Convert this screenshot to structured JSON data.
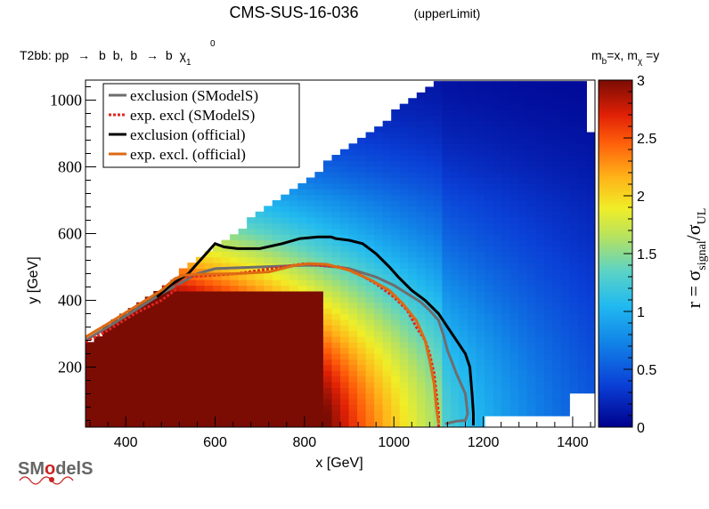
{
  "chart_data": {
    "type": "heatmap",
    "title": "CMS-SUS-16-036",
    "title_suffix": "(upperLimit)",
    "process": {
      "prefix": "T2bb: pp",
      "arrow": "→",
      "b": "b",
      "sep": ",",
      "chi": "χ",
      "zero": "0",
      "one": "1"
    },
    "mass_note": {
      "m": "m",
      "b_sub": "b",
      "eq_x": "=x, ",
      "chi_sub": "χ",
      "eq_y": "=y"
    },
    "xlabel": "x [GeV]",
    "ylabel": "y [GeV]",
    "zlabel": {
      "main": "r = σ",
      "sub1": "signal",
      "slash": "/σ",
      "sub2": "UL"
    },
    "xlim": [
      310,
      1450
    ],
    "ylim": [
      20,
      1060
    ],
    "zlim": [
      0,
      3
    ],
    "x_ticks": [
      "400",
      "600",
      "800",
      "1000",
      "1200",
      "1400"
    ],
    "x_tick_values": [
      400,
      600,
      800,
      1000,
      1200,
      1400
    ],
    "y_ticks": [
      "200",
      "400",
      "600",
      "800",
      "1000"
    ],
    "y_tick_values": [
      200,
      400,
      600,
      800,
      1000
    ],
    "z_ticks": [
      "0",
      "0.5",
      "1",
      "1.5",
      "2",
      "2.5",
      "3"
    ],
    "z_tick_values": [
      0,
      0.5,
      1,
      1.5,
      2,
      2.5,
      3
    ],
    "legend": [
      {
        "label": "exclusion (SModelS)",
        "color": "#6e6e6e",
        "style": "solid"
      },
      {
        "label": "exp. excl (SModelS)",
        "color": "#e3261e",
        "style": "dotted"
      },
      {
        "label": "exclusion (official)",
        "color": "#000000",
        "style": "solid"
      },
      {
        "label": "exp. excl. (official)",
        "color": "#dd6a12",
        "style": "solid"
      }
    ],
    "series": [
      {
        "name": "exclusion (SModelS)",
        "color": "#6e6e6e",
        "dash": "",
        "points": [
          [
            310,
            280
          ],
          [
            360,
            320
          ],
          [
            420,
            370
          ],
          [
            480,
            420
          ],
          [
            520,
            450
          ],
          [
            560,
            480
          ],
          [
            600,
            495
          ],
          [
            700,
            500
          ],
          [
            800,
            505
          ],
          [
            830,
            505
          ],
          [
            870,
            500
          ],
          [
            900,
            495
          ],
          [
            960,
            470
          ],
          [
            1000,
            445
          ],
          [
            1030,
            420
          ],
          [
            1060,
            395
          ],
          [
            1080,
            370
          ],
          [
            1100,
            340
          ],
          [
            1110,
            300
          ],
          [
            1120,
            250
          ],
          [
            1140,
            180
          ],
          [
            1160,
            120
          ],
          [
            1165,
            60
          ],
          [
            1160,
            40
          ],
          [
            1140,
            38
          ],
          [
            1115,
            30
          ]
        ]
      },
      {
        "name": "exp. excl (SModelS)",
        "color": "#e3261e",
        "dash": "3,2",
        "points": [
          [
            310,
            275
          ],
          [
            360,
            310
          ],
          [
            420,
            360
          ],
          [
            480,
            400
          ],
          [
            510,
            430
          ],
          [
            520,
            470
          ],
          [
            560,
            472
          ],
          [
            650,
            480
          ],
          [
            750,
            500
          ],
          [
            800,
            510
          ],
          [
            830,
            505
          ],
          [
            880,
            500
          ],
          [
            920,
            480
          ],
          [
            960,
            450
          ],
          [
            1000,
            410
          ],
          [
            1030,
            370
          ],
          [
            1050,
            320
          ],
          [
            1070,
            280
          ],
          [
            1080,
            240
          ],
          [
            1090,
            180
          ],
          [
            1095,
            120
          ],
          [
            1100,
            60
          ],
          [
            1100,
            20
          ]
        ]
      },
      {
        "name": "exclusion (official)",
        "color": "#000000",
        "dash": "",
        "points": [
          [
            470,
            410
          ],
          [
            500,
            445
          ],
          [
            540,
            480
          ],
          [
            580,
            540
          ],
          [
            600,
            570
          ],
          [
            620,
            560
          ],
          [
            650,
            555
          ],
          [
            700,
            555
          ],
          [
            750,
            570
          ],
          [
            790,
            585
          ],
          [
            830,
            590
          ],
          [
            860,
            590
          ],
          [
            870,
            585
          ],
          [
            900,
            580
          ],
          [
            930,
            570
          ],
          [
            960,
            540
          ],
          [
            990,
            500
          ],
          [
            1010,
            470
          ],
          [
            1040,
            430
          ],
          [
            1070,
            400
          ],
          [
            1100,
            360
          ],
          [
            1120,
            320
          ],
          [
            1140,
            280
          ],
          [
            1160,
            240
          ],
          [
            1170,
            200
          ],
          [
            1175,
            120
          ],
          [
            1178,
            60
          ],
          [
            1178,
            25
          ]
        ]
      },
      {
        "name": "exp. excl. (official)",
        "color": "#dd6a12",
        "dash": "",
        "points": [
          [
            310,
            290
          ],
          [
            360,
            330
          ],
          [
            420,
            380
          ],
          [
            480,
            430
          ],
          [
            510,
            465
          ],
          [
            530,
            475
          ],
          [
            560,
            478
          ],
          [
            650,
            480
          ],
          [
            720,
            485
          ],
          [
            780,
            505
          ],
          [
            810,
            510
          ],
          [
            850,
            508
          ],
          [
            900,
            490
          ],
          [
            950,
            460
          ],
          [
            990,
            430
          ],
          [
            1020,
            390
          ],
          [
            1050,
            340
          ],
          [
            1070,
            280
          ],
          [
            1080,
            220
          ],
          [
            1090,
            150
          ],
          [
            1095,
            80
          ],
          [
            1100,
            30
          ]
        ]
      }
    ],
    "heatmap_bins": {
      "x_start": 310,
      "x_step": 19,
      "y_start": 20,
      "y_step": 17,
      "note_on_values": "r increases toward low x and low y; saturated (>=3) in lower-left region"
    }
  },
  "logo": {
    "text_sm": "SM",
    "text_o": "o",
    "text_dels": "delS"
  }
}
